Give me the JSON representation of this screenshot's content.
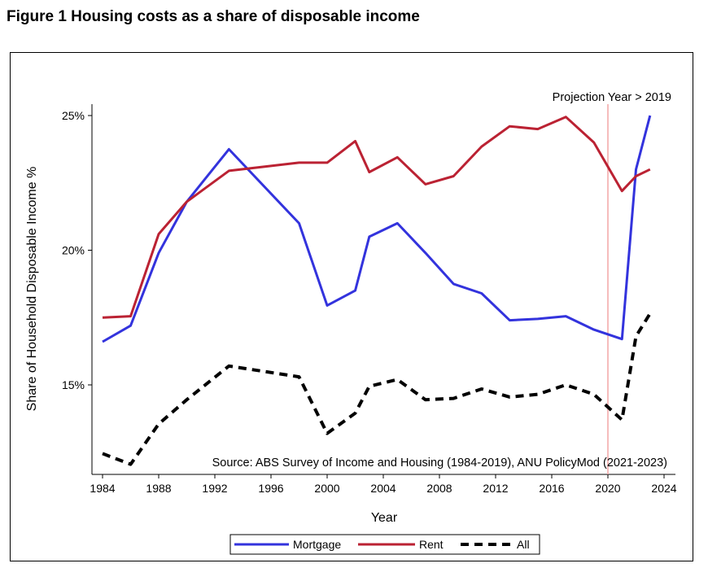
{
  "figure_title": "Figure 1 Housing costs as a share of disposable income",
  "chart_data": {
    "type": "line",
    "title": "",
    "xlabel": "Year",
    "ylabel": "Share of Household Disposable Income %",
    "xlim": [
      1984,
      2024
    ],
    "ylim": [
      12.0,
      25.4
    ],
    "x_ticks": [
      1984,
      1988,
      1992,
      1996,
      2000,
      2004,
      2008,
      2012,
      2016,
      2020,
      2024
    ],
    "y_ticks": [
      {
        "value": 15,
        "label": "15%"
      },
      {
        "value": 20,
        "label": "20%"
      },
      {
        "value": 25,
        "label": "25%"
      }
    ],
    "grid": false,
    "legend_position": "bottom",
    "series": [
      {
        "name": "Mortgage",
        "color": "#3333dd",
        "style": "solid",
        "points": [
          [
            1984,
            16.6
          ],
          [
            1986,
            17.2
          ],
          [
            1988,
            19.9
          ],
          [
            1990,
            21.8
          ],
          [
            1993,
            23.75
          ],
          [
            1998,
            21.0
          ],
          [
            2000,
            17.95
          ],
          [
            2002,
            18.5
          ],
          [
            2003,
            20.5
          ],
          [
            2005,
            21.0
          ],
          [
            2007,
            19.9
          ],
          [
            2009,
            18.75
          ],
          [
            2011,
            18.4
          ],
          [
            2013,
            17.4
          ],
          [
            2015,
            17.45
          ],
          [
            2017,
            17.55
          ],
          [
            2019,
            17.05
          ],
          [
            2021,
            16.7
          ],
          [
            2022,
            23.0
          ],
          [
            2023,
            25.0
          ]
        ]
      },
      {
        "name": "Rent",
        "color": "#bb2233",
        "style": "solid",
        "points": [
          [
            1984,
            17.5
          ],
          [
            1986,
            17.55
          ],
          [
            1988,
            20.6
          ],
          [
            1990,
            21.8
          ],
          [
            1993,
            22.95
          ],
          [
            1998,
            23.25
          ],
          [
            2000,
            23.25
          ],
          [
            2002,
            24.05
          ],
          [
            2003,
            22.9
          ],
          [
            2005,
            23.45
          ],
          [
            2007,
            22.45
          ],
          [
            2009,
            22.75
          ],
          [
            2011,
            23.85
          ],
          [
            2013,
            24.6
          ],
          [
            2015,
            24.5
          ],
          [
            2017,
            24.95
          ],
          [
            2019,
            24.0
          ],
          [
            2021,
            22.2
          ],
          [
            2022,
            22.75
          ],
          [
            2023,
            23.0
          ]
        ]
      },
      {
        "name": "All",
        "color": "#000000",
        "style": "dashed",
        "points": [
          [
            1984,
            12.45
          ],
          [
            1986,
            12.05
          ],
          [
            1988,
            13.55
          ],
          [
            1990,
            14.45
          ],
          [
            1993,
            15.7
          ],
          [
            1998,
            15.3
          ],
          [
            2000,
            13.2
          ],
          [
            2002,
            13.95
          ],
          [
            2003,
            14.95
          ],
          [
            2005,
            15.2
          ],
          [
            2007,
            14.45
          ],
          [
            2009,
            14.5
          ],
          [
            2011,
            14.85
          ],
          [
            2013,
            14.55
          ],
          [
            2015,
            14.65
          ],
          [
            2017,
            15.0
          ],
          [
            2019,
            14.65
          ],
          [
            2021,
            13.7
          ],
          [
            2022,
            16.8
          ],
          [
            2023,
            17.65
          ]
        ]
      }
    ],
    "projection_line": {
      "x": 2020,
      "color": "#f4a6a6",
      "label": "Projection Year > 2019"
    },
    "source_note": "Source: ABS Survey of Income and Housing (1984-2019), ANU PolicyMod (2021-2023)"
  }
}
